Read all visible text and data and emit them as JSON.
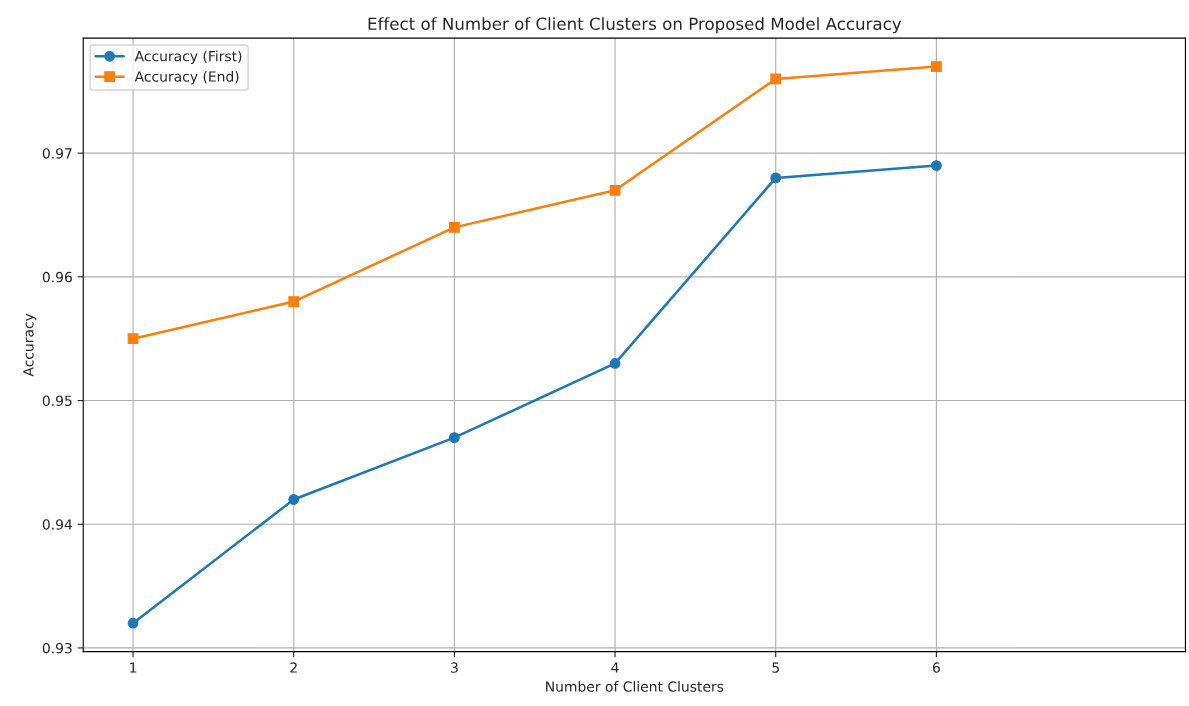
{
  "chart_data": {
    "type": "line",
    "title": "Effect of Number of Client Clusters on Proposed Model Accuracy",
    "xlabel": "Number of Client Clusters",
    "ylabel": "Accuracy",
    "x": [
      1,
      2,
      3,
      4,
      5,
      6
    ],
    "series": [
      {
        "name": "Accuracy (First)",
        "color": "#1f77b4",
        "marker": "circle",
        "values": [
          0.932,
          0.942,
          0.947,
          0.953,
          0.968,
          0.969
        ]
      },
      {
        "name": "Accuracy (End)",
        "color": "#ff7f0e",
        "marker": "square",
        "values": [
          0.955,
          0.958,
          0.964,
          0.967,
          0.976,
          0.977
        ]
      }
    ],
    "xlim": [
      0.69,
      7.55
    ],
    "xticks": [
      1,
      2,
      3,
      4,
      5,
      6
    ],
    "ylim": [
      0.9297,
      0.9793
    ],
    "yticks": [
      0.93,
      0.94,
      0.95,
      0.96,
      0.97
    ],
    "grid": true,
    "legend": "top left",
    "line_style": "solid"
  }
}
